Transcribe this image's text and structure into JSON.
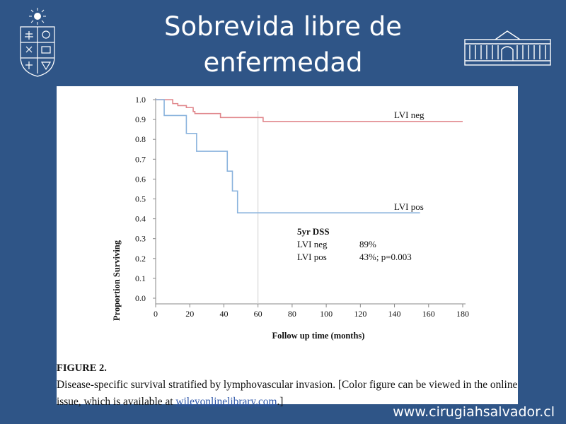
{
  "slide": {
    "title_line1": "Sobrevida libre de",
    "title_line2": "enfermedad",
    "footer": "www.cirugiahsalvador.cl"
  },
  "caption": {
    "label": "FIGURE 2.",
    "text": "Disease-specific survival stratified by lymphovascular invasion. [Color figure can be viewed in the online issue, which is available at ",
    "link": "wileyonlinelibrary.com",
    "end": ".]"
  },
  "chart_data": {
    "type": "line",
    "title": "",
    "xlabel": "Follow up time (months)",
    "ylabel": "Proportion Surviving",
    "xlim": [
      0,
      180
    ],
    "ylim": [
      0,
      1.0
    ],
    "xticks": [
      0,
      20,
      40,
      60,
      80,
      100,
      120,
      140,
      160,
      180
    ],
    "yticks": [
      "0.0",
      "0.1",
      "0.2",
      "0.3",
      "0.4",
      "0.5",
      "0.6",
      "0.7",
      "0.8",
      "0.9",
      "1.0"
    ],
    "grid": false,
    "reference_line_x": 60,
    "series": [
      {
        "name": "LVI neg",
        "color": "#e0868b",
        "step": true,
        "x": [
          0,
          10,
          13,
          18,
          22,
          23,
          38,
          63,
          180
        ],
        "y": [
          1.0,
          0.98,
          0.97,
          0.96,
          0.94,
          0.93,
          0.91,
          0.89,
          0.89
        ]
      },
      {
        "name": "LVI pos",
        "color": "#8ab3dd",
        "step": true,
        "x": [
          0,
          5,
          18,
          24,
          42,
          45,
          48,
          51,
          155
        ],
        "y": [
          1.0,
          0.92,
          0.83,
          0.74,
          0.64,
          0.54,
          0.43,
          0.43,
          0.43
        ]
      }
    ],
    "annotation": {
      "title": "5yr DSS",
      "rows": [
        {
          "label": "LVI neg",
          "value": "89%"
        },
        {
          "label": "LVI pos",
          "value": "43%; p=0.003"
        }
      ]
    }
  }
}
